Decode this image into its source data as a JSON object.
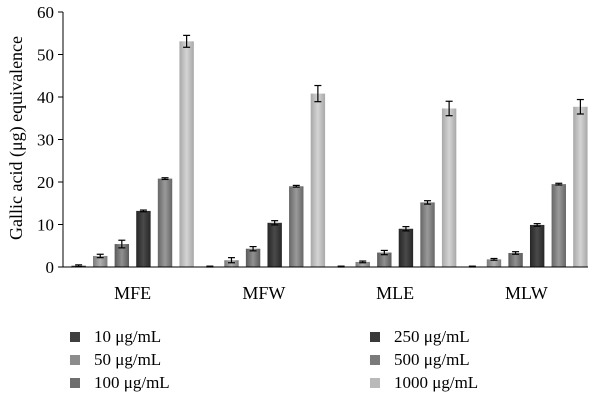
{
  "chart_data": {
    "type": "bar",
    "ylabel": "Gallic acid (μg) equivalence",
    "ylim": [
      0,
      60
    ],
    "yticks": [
      0,
      10,
      20,
      30,
      40,
      50,
      60
    ],
    "categories": [
      "MFE",
      "MFW",
      "MLE",
      "MLW"
    ],
    "grid": false,
    "legend_position": "bottom",
    "error_bars": true,
    "series": [
      {
        "name": "10 μg/mL",
        "color": "#3f3f3f",
        "values": [
          0.3,
          0.1,
          0.1,
          0.1
        ],
        "errors": [
          0.2,
          0.1,
          0.1,
          0.1
        ]
      },
      {
        "name": "50 μg/mL",
        "color": "#8c8c8c",
        "values": [
          2.6,
          1.6,
          1.2,
          1.8
        ],
        "errors": [
          0.4,
          0.6,
          0.2,
          0.2
        ]
      },
      {
        "name": "100 μg/mL",
        "color": "#6e6e6e",
        "values": [
          5.4,
          4.3,
          3.4,
          3.3
        ],
        "errors": [
          0.9,
          0.5,
          0.5,
          0.3
        ]
      },
      {
        "name": "250 μg/mL",
        "color": "#3a3a3a",
        "values": [
          13.2,
          10.4,
          9.0,
          9.9
        ],
        "errors": [
          0.2,
          0.5,
          0.5,
          0.3
        ]
      },
      {
        "name": "500 μg/mL",
        "color": "#7a7a7a",
        "values": [
          20.8,
          19.0,
          15.2,
          19.5
        ],
        "errors": [
          0.2,
          0.2,
          0.4,
          0.2
        ]
      },
      {
        "name": "1000 μg/mL",
        "color": "#b9b9b9",
        "values": [
          53.1,
          40.8,
          37.3,
          37.7
        ],
        "errors": [
          1.4,
          1.9,
          1.7,
          1.7
        ]
      }
    ]
  }
}
